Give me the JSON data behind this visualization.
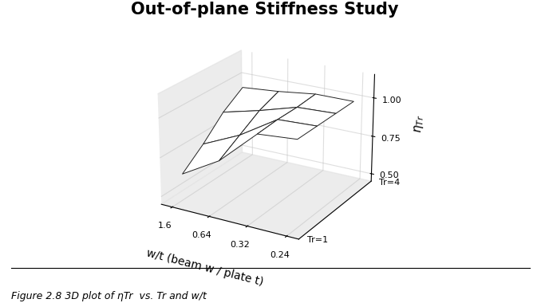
{
  "title": "Out-of-plane Stiffness Study",
  "xlabel": "w/t (beam w / plate t)",
  "zlabel": "ηTr",
  "wt_tick_labels": [
    "1.6",
    "0.64",
    "0.32",
    "0.24"
  ],
  "zlim": [
    0.45,
    1.15
  ],
  "zticks": [
    0.5,
    0.75,
    1.0
  ],
  "ztick_labels": [
    "0.50",
    "0.75",
    "1.00"
  ],
  "eta_data": [
    [
      0.62,
      0.76,
      0.98,
      1.0
    ],
    [
      0.73,
      0.84,
      0.99,
      1.0
    ],
    [
      0.86,
      0.92,
      0.99,
      1.0
    ],
    [
      0.95,
      0.97,
      1.0,
      1.0
    ]
  ],
  "surface_color": "white",
  "edge_color": "#222222",
  "background_color": "white",
  "title_fontsize": 15,
  "axis_label_fontsize": 10,
  "tick_fontsize": 8,
  "caption_fontsize": 9,
  "figure_caption": "Figure 2.8 3D plot of ηTr  vs. Tr and w/t",
  "elev": 22,
  "azim": -60
}
